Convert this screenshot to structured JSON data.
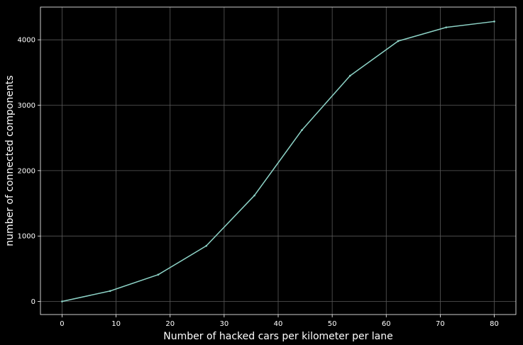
{
  "chart_data": {
    "type": "line",
    "title": "",
    "xlabel": "Number of hacked cars per kilometer per lane",
    "ylabel": "number of connected components",
    "xlim": [
      -4,
      84
    ],
    "ylim": [
      -200,
      4500
    ],
    "xticks": [
      0,
      10,
      20,
      30,
      40,
      50,
      60,
      70,
      80
    ],
    "yticks": [
      0,
      1000,
      2000,
      3000,
      4000
    ],
    "grid": true,
    "series": [
      {
        "x": [
          0,
          8.9,
          17.8,
          26.7,
          35.6,
          44.4,
          53.3,
          62.2,
          71.1,
          80
        ],
        "y": [
          0,
          160,
          410,
          850,
          1620,
          2620,
          3450,
          3980,
          4190,
          4280
        ]
      }
    ]
  },
  "colors": {
    "background": "#000000",
    "axes_frame": "#ffffff",
    "grid": "#5a5a5a",
    "series_line": "#8dd3c7",
    "text": "#ffffff"
  }
}
